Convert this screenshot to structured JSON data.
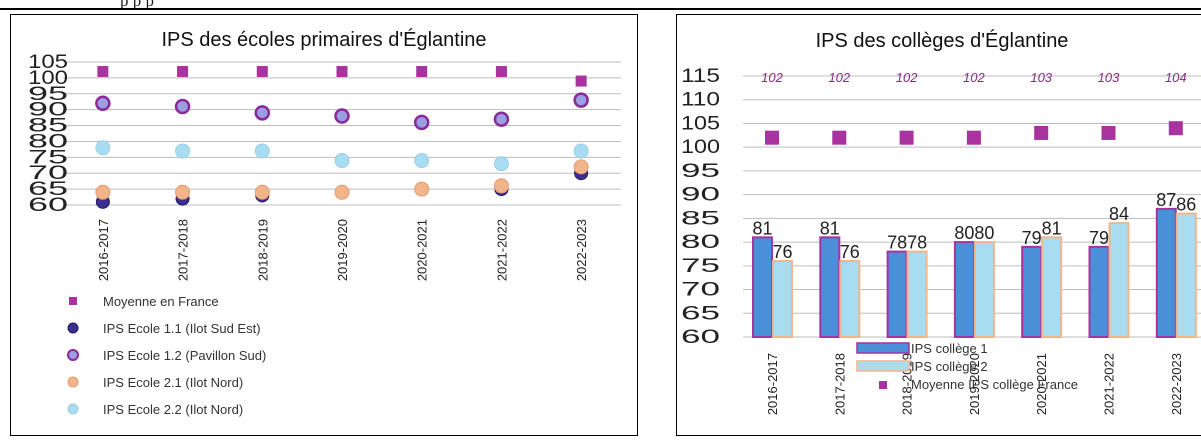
{
  "page": {
    "top_fragment": "p                                                                                                 p  p",
    "colors": {
      "moyenne": "#a8329e",
      "e11": "#3b2f8f",
      "e12": "#9b9ee0",
      "e12_stroke": "#8a2a9a",
      "e21": "#f2b48a",
      "e22": "#a8dcf0",
      "college1": "#4a90d9",
      "college1_stroke": "#a8329e",
      "college2": "#a8dcf0",
      "college2_stroke": "#f2b48a",
      "grid": "#bdbdbd"
    }
  },
  "chart_data": [
    {
      "type": "scatter",
      "title": "IPS des écoles primaires d'Églantine",
      "categories": [
        "2016-2017",
        "2017-2018",
        "2018-2019",
        "2019-2020",
        "2020-2021",
        "2021-2022",
        "2022-2023"
      ],
      "yticks": [
        60,
        65,
        70,
        75,
        80,
        85,
        90,
        95,
        100,
        105
      ],
      "ylim": [
        60,
        105
      ],
      "grid": true,
      "legend_position": "bottom",
      "series": [
        {
          "name": "Moyenne en France",
          "marker": "square",
          "values": [
            102,
            102,
            102,
            102,
            102,
            102,
            99
          ]
        },
        {
          "name": "IPS Ecole 1.1 (Ilot Sud Est)",
          "marker": "circle",
          "values": [
            61,
            62,
            63,
            64,
            65,
            65,
            70
          ]
        },
        {
          "name": "IPS Ecole 1.2 (Pavillon Sud)",
          "marker": "circle",
          "values": [
            92,
            91,
            89,
            88,
            86,
            87,
            93
          ]
        },
        {
          "name": "IPS Ecole 2.1 (Ilot Nord)",
          "marker": "circle",
          "values": [
            64,
            64,
            64,
            64,
            65,
            66,
            72
          ]
        },
        {
          "name": "IPS Ecole 2.2 (Ilot Nord)",
          "marker": "circle",
          "values": [
            78,
            77,
            77,
            74,
            74,
            73,
            77
          ]
        }
      ]
    },
    {
      "type": "bar",
      "title": "IPS des collèges d'Églantine",
      "categories": [
        "2016-2017",
        "2017-2018",
        "2018-2019",
        "2019-2020",
        "2020-2021",
        "2021-2022",
        "2022-2023"
      ],
      "yticks": [
        60,
        65,
        70,
        75,
        80,
        85,
        90,
        95,
        100,
        105,
        110,
        115
      ],
      "ylim": [
        60,
        115
      ],
      "grid": true,
      "legend_position": "bottom",
      "series": [
        {
          "name": "IPS collège 1",
          "values": [
            81,
            81,
            78,
            80,
            79,
            79,
            87
          ]
        },
        {
          "name": "IPS collège 2",
          "values": [
            76,
            76,
            78,
            80,
            81,
            84,
            86
          ]
        },
        {
          "name": "Moyenne IPS collège France",
          "marker": "square",
          "values": [
            102,
            102,
            102,
            102,
            103,
            103,
            104
          ]
        }
      ]
    }
  ]
}
